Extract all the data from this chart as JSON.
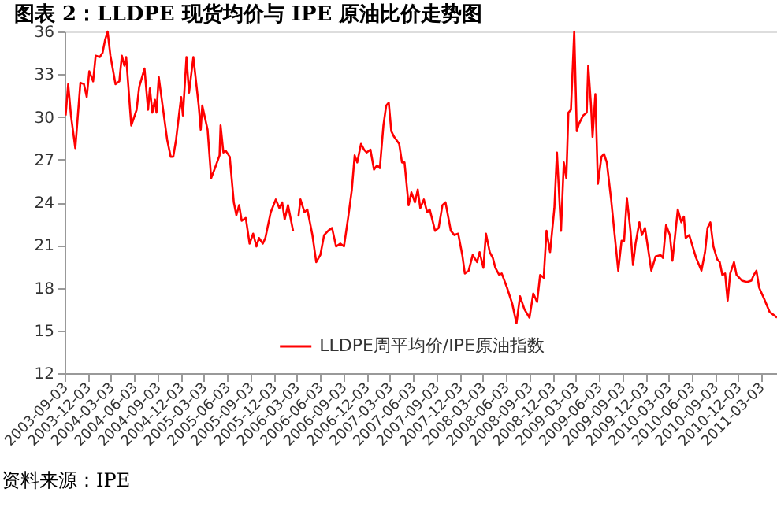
{
  "chart_data": {
    "type": "line",
    "title": "图表 2：LLDPE 现货均价与 IPE 原油比价走势图",
    "annotations": [
      "资料来源：IPE"
    ],
    "legend": "bottom",
    "ylim": [
      12,
      36
    ],
    "yticks": [
      12,
      15,
      18,
      21,
      24,
      27,
      30,
      33,
      36
    ],
    "xlim": [
      "2003-09-03",
      "2011-05-04"
    ],
    "xticks": [
      "2003-09-03",
      "2003-12-03",
      "2004-03-03",
      "2004-06-03",
      "2004-09-03",
      "2004-12-03",
      "2005-03-03",
      "2005-06-03",
      "2005-09-03",
      "2005-12-03",
      "2006-03-03",
      "2006-06-03",
      "2006-09-03",
      "2006-12-03",
      "2007-03-03",
      "2007-06-03",
      "2007-09-03",
      "2007-12-03",
      "2008-03-03",
      "2008-06-03",
      "2008-09-03",
      "2008-12-03",
      "2009-03-03",
      "2009-06-03",
      "2009-09-03",
      "2009-12-03",
      "2010-03-03",
      "2010-06-03",
      "2010-09-03",
      "2010-12-03",
      "2011-03-03"
    ],
    "x": [
      "2003-09-07",
      "2003-09-17",
      "2003-09-28",
      "2003-10-15",
      "2003-11-04",
      "2003-11-18",
      "2003-11-29",
      "2003-12-09",
      "2003-12-24",
      "2004-01-03",
      "2004-01-19",
      "2004-01-30",
      "2004-02-09",
      "2004-02-19",
      "2004-03-01",
      "2004-03-21",
      "2004-04-05",
      "2004-04-15",
      "2004-04-25",
      "2004-05-02",
      "2004-05-22",
      "2004-06-12",
      "2004-06-22",
      "2004-07-13",
      "2004-07-27",
      "2004-08-03",
      "2004-08-13",
      "2004-08-23",
      "2004-08-29",
      "2004-09-07",
      "2004-09-19",
      "2004-10-10",
      "2004-10-24",
      "2004-11-03",
      "2004-11-14",
      "2004-12-04",
      "2004-12-11",
      "2004-12-25",
      "2005-01-04",
      "2005-01-21",
      "2005-02-11",
      "2005-02-19",
      "2005-02-25",
      "2005-03-18",
      "2005-04-01",
      "2005-04-18",
      "2005-05-04",
      "2005-05-08",
      "2005-05-19",
      "2005-05-29",
      "2005-06-13",
      "2005-06-29",
      "2005-07-09",
      "2005-07-20",
      "2005-07-30",
      "2005-08-15",
      "2005-08-30",
      "2005-09-13",
      "2005-09-26",
      "2005-10-06",
      "2005-10-21",
      "2005-10-31",
      "2005-11-21",
      "2005-12-11",
      "2005-12-25",
      "2006-01-05",
      "2006-01-15",
      "2006-01-28",
      "2006-02-17",
      "2006-02-27",
      "2006-03-10",
      "2006-03-18",
      "2006-04-03",
      "2006-04-14",
      "2006-05-04",
      "2006-05-19",
      "2006-06-04",
      "2006-06-19",
      "2006-07-05",
      "2006-07-20",
      "2006-08-05",
      "2006-08-22",
      "2006-09-05",
      "2006-09-22",
      "2006-10-06",
      "2006-10-17",
      "2006-10-27",
      "2006-11-11",
      "2006-11-23",
      "2006-12-03",
      "2006-12-18",
      "2007-01-01",
      "2007-01-13",
      "2007-01-24",
      "2007-02-07",
      "2007-02-18",
      "2007-02-28",
      "2007-03-10",
      "2007-03-21",
      "2007-04-10",
      "2007-04-21",
      "2007-05-01",
      "2007-05-17",
      "2007-05-28",
      "2007-06-11",
      "2007-06-22",
      "2007-07-02",
      "2007-07-16",
      "2007-07-29",
      "2007-08-08",
      "2007-08-29",
      "2007-09-12",
      "2007-09-27",
      "2007-10-09",
      "2007-10-30",
      "2007-11-13",
      "2007-11-28",
      "2007-12-14",
      "2007-12-24",
      "2008-01-08",
      "2008-01-24",
      "2008-02-10",
      "2008-02-20",
      "2008-03-06",
      "2008-03-16",
      "2008-03-31",
      "2008-04-12",
      "2008-04-22",
      "2008-05-07",
      "2008-05-17",
      "2008-06-07",
      "2008-06-27",
      "2008-07-14",
      "2008-07-28",
      "2008-08-14",
      "2008-09-03",
      "2008-09-18",
      "2008-10-03",
      "2008-10-15",
      "2008-10-29",
      "2008-11-09",
      "2008-11-23",
      "2008-12-10",
      "2008-12-20",
      "2009-01-05",
      "2009-01-16",
      "2009-01-26",
      "2009-02-03",
      "2009-02-13",
      "2009-02-26",
      "2009-03-08",
      "2009-03-16",
      "2009-04-02",
      "2009-04-16",
      "2009-04-22",
      "2009-05-03",
      "2009-05-09",
      "2009-05-20",
      "2009-05-30",
      "2009-06-13",
      "2009-06-23",
      "2009-07-04",
      "2009-07-21",
      "2009-08-04",
      "2009-08-18",
      "2009-08-31",
      "2009-09-10",
      "2009-09-21",
      "2009-10-05",
      "2009-10-15",
      "2009-10-25",
      "2009-11-09",
      "2009-11-19",
      "2009-12-01",
      "2009-12-12",
      "2009-12-26",
      "2010-01-12",
      "2010-01-31",
      "2010-02-10",
      "2010-02-22",
      "2010-03-09",
      "2010-03-19",
      "2010-04-09",
      "2010-04-23",
      "2010-05-03",
      "2010-05-10",
      "2010-05-24",
      "2010-06-03",
      "2010-06-20",
      "2010-07-11",
      "2010-07-25",
      "2010-08-04",
      "2010-08-15",
      "2010-08-27",
      "2010-09-11",
      "2010-09-21",
      "2010-10-01",
      "2010-10-12",
      "2010-10-22",
      "2010-11-01",
      "2010-11-16",
      "2010-11-26",
      "2010-12-17",
      "2011-01-06",
      "2011-01-23",
      "2011-02-02",
      "2011-02-12",
      "2011-02-23",
      "2011-03-15",
      "2011-04-05",
      "2011-04-20",
      "2011-05-04"
    ],
    "series": [
      {
        "name": "LLDPE周平均价/IPE原油指数",
        "color": "#ff0000",
        "values": [
          30.1,
          32.3,
          30.1,
          27.8,
          32.4,
          32.3,
          31.4,
          33.2,
          32.5,
          34.3,
          34.2,
          34.5,
          35.4,
          36,
          34.3,
          32.3,
          32.5,
          34.3,
          33.6,
          34.2,
          29.4,
          30.5,
          32.1,
          33.4,
          30.5,
          32,
          30.3,
          31.2,
          30.3,
          32.8,
          31.2,
          28.4,
          27.2,
          27.2,
          28.4,
          31.4,
          30.1,
          34.2,
          31.7,
          34.2,
          30.8,
          29.1,
          30.8,
          29.1,
          25.7,
          26.5,
          27.3,
          29.4,
          27.5,
          27.6,
          27.2,
          24,
          23.1,
          23.8,
          22.7,
          22.9,
          21.1,
          21.8,
          20.9,
          21.5,
          21.1,
          21.5,
          23.3,
          24.2,
          23.6,
          24,
          22.8,
          23.8,
          22,
          null,
          23,
          24.2,
          23.3,
          23.5,
          21.7,
          19.8,
          20.3,
          21.7,
          22,
          22.2,
          20.9,
          21.1,
          20.9,
          23,
          24.9,
          27.3,
          26.8,
          28.1,
          27.7,
          27.5,
          27.7,
          26.3,
          26.6,
          26.4,
          29.4,
          30.8,
          31,
          29,
          28.6,
          28.1,
          26.8,
          26.8,
          23.8,
          24.7,
          24,
          24.9,
          23.6,
          24.2,
          23.3,
          23.5,
          22,
          22.2,
          23.8,
          24,
          22,
          21.7,
          21.8,
          20.3,
          19,
          19.2,
          20.3,
          19.8,
          20.5,
          19.4,
          21.8,
          20.5,
          20.1,
          19.4,
          18.9,
          19,
          18,
          16.9,
          15.5,
          17.4,
          16.5,
          15.9,
          17.6,
          17,
          18.9,
          18.7,
          22,
          20.5,
          23.6,
          27.5,
          22,
          26.8,
          25.7,
          30.3,
          30.5,
          36,
          29,
          29.5,
          30.1,
          30.3,
          33.6,
          30.8,
          28.6,
          31.6,
          25.3,
          27.2,
          27.4,
          26.8,
          24.2,
          21.7,
          19.2,
          21.3,
          21.3,
          24.3,
          22,
          19.6,
          21.1,
          22.6,
          21.7,
          22.2,
          20.9,
          19.2,
          20.2,
          20.3,
          20.1,
          22.4,
          21.7,
          19.9,
          23.5,
          22.6,
          23,
          21.5,
          21.7,
          21.1,
          20.1,
          19.2,
          20.5,
          22.2,
          22.6,
          20.9,
          20,
          19.8,
          18.9,
          19,
          17.1,
          19,
          19.8,
          18.9,
          18.5,
          18.4,
          18.5,
          18.9,
          19.2,
          18,
          17.2,
          16.3,
          16.1,
          15.9
        ]
      }
    ]
  }
}
